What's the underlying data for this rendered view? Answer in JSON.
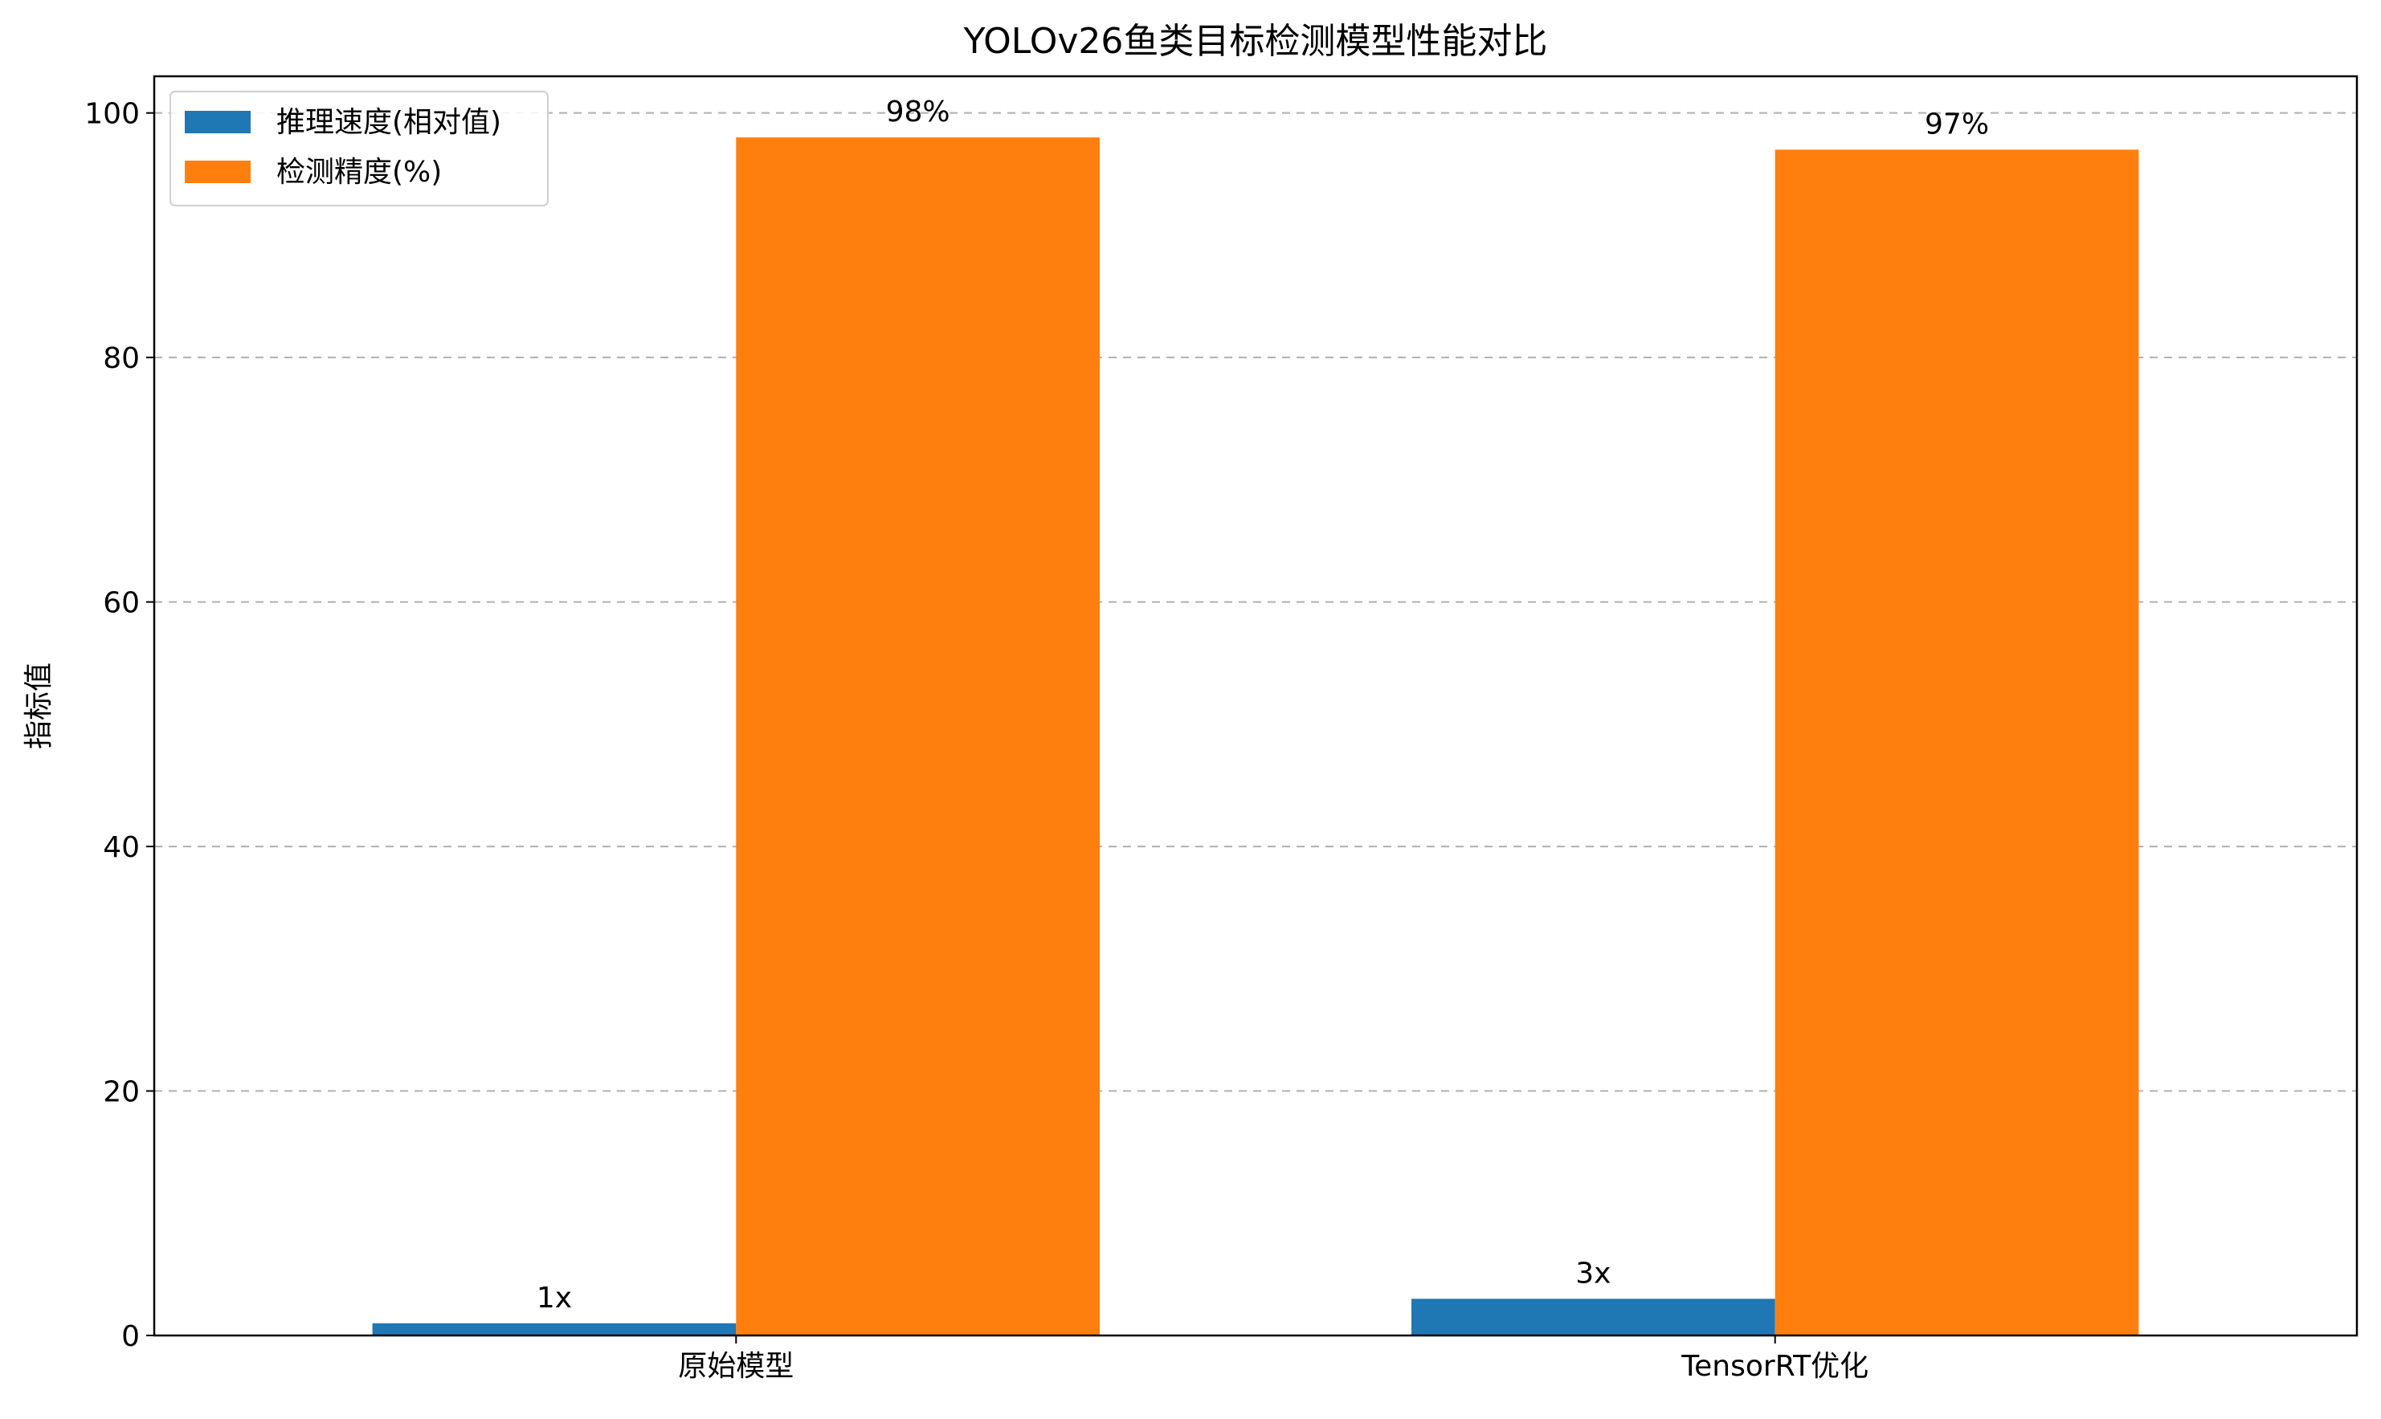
{
  "chart_data": {
    "type": "bar",
    "title": "YOLOv26鱼类目标检测模型性能对比",
    "xlabel": "",
    "ylabel": "指标值",
    "categories": [
      "原始模型",
      "TensorRT优化"
    ],
    "series": [
      {
        "name": "推理速度(相对值)",
        "values": [
          1,
          3
        ],
        "labels": [
          "1x",
          "3x"
        ],
        "color": "#1f77b4"
      },
      {
        "name": "检测精度(%)",
        "values": [
          98,
          97
        ],
        "labels": [
          "98%",
          "97%"
        ],
        "color": "#ff7f0e"
      }
    ],
    "ylim": [
      0,
      103
    ],
    "yticks": [
      0,
      20,
      40,
      60,
      80,
      100
    ],
    "ytick_labels": [
      "0",
      "20",
      "40",
      "60",
      "80",
      "100"
    ],
    "grid": "y-dashed",
    "legend_position": "top-left"
  }
}
